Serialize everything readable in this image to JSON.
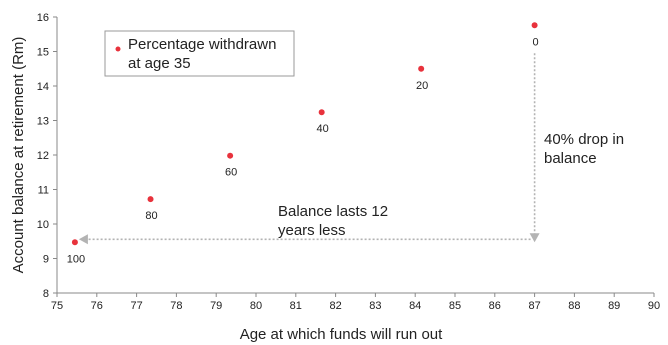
{
  "chart_data": {
    "type": "scatter",
    "xlabel": "Age at which funds will run out",
    "ylabel": "Account balance at retirement (Rm)",
    "xlim": [
      75,
      90
    ],
    "ylim": [
      8,
      16
    ],
    "xticks": [
      75,
      76,
      77,
      78,
      79,
      80,
      81,
      82,
      83,
      84,
      85,
      86,
      87,
      88,
      89,
      90
    ],
    "yticks": [
      8,
      9,
      10,
      11,
      12,
      13,
      14,
      15,
      16
    ],
    "grid": false,
    "legend": {
      "position": "top-left",
      "line1": "Percentage withdrawn",
      "line2": "at age 35"
    },
    "series": [
      {
        "name": "Percentage withdrawn at age 35",
        "color": "#e8323c",
        "points": [
          {
            "x": 75.45,
            "y": 9.47,
            "label": "100"
          },
          {
            "x": 77.35,
            "y": 10.72,
            "label": "80"
          },
          {
            "x": 79.35,
            "y": 11.98,
            "label": "60"
          },
          {
            "x": 81.65,
            "y": 13.24,
            "label": "40"
          },
          {
            "x": 84.15,
            "y": 14.5,
            "label": "20"
          },
          {
            "x": 87.0,
            "y": 15.76,
            "label": "0"
          }
        ]
      }
    ],
    "annotations": {
      "drop": {
        "line1": "40% drop in",
        "line2": "balance"
      },
      "lasts": {
        "line1": "Balance lasts 12",
        "line2": "years less"
      }
    }
  }
}
